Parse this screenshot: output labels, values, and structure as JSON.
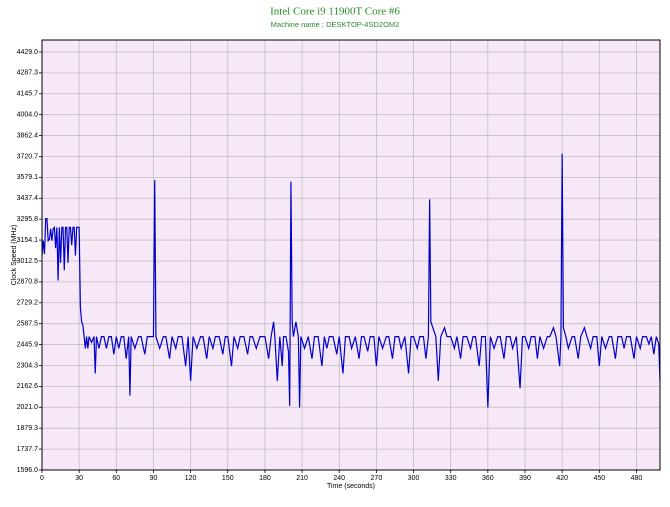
{
  "chart_data": {
    "type": "line",
    "title": "Intel Core i9 11900T Core #6",
    "subtitle": "Machine name : DESKTOP-4SD2OM2",
    "x_label": "Time (seconds)",
    "y_label": "Clock Speed (MHz)",
    "xlim": [
      0,
      499
    ],
    "ylim": [
      1596,
      4510
    ],
    "xticks": [
      0,
      30,
      60,
      90,
      120,
      150,
      180,
      210,
      240,
      270,
      300,
      330,
      360,
      390,
      420,
      450,
      480
    ],
    "yticks": [
      {
        "value": 1596,
        "label": "1596.0"
      },
      1737.7,
      1879.3,
      {
        "value": 2021,
        "label": "2021.0"
      },
      2162.6,
      2304.3,
      2445.9,
      2587.5,
      2729.2,
      2870.8,
      3012.5,
      3154.1,
      3295.8,
      3437.4,
      3579.1,
      3720.7,
      3862.4,
      {
        "value": 4004,
        "label": "4004.0"
      },
      4145.7,
      4287.3,
      {
        "value": 4429,
        "label": "4429.0"
      }
    ],
    "grid": true,
    "background": "#f7e8f7",
    "x": [
      0,
      1,
      2,
      3,
      4,
      5,
      6,
      7,
      8,
      9,
      10,
      11,
      12,
      13,
      14,
      15,
      16,
      17,
      18,
      19,
      20,
      21,
      22,
      23,
      24,
      25,
      26,
      27,
      28,
      29,
      30,
      31,
      32,
      33,
      34,
      35,
      36,
      37,
      38,
      40,
      42,
      43,
      44,
      46,
      48,
      50,
      52,
      54,
      56,
      58,
      60,
      62,
      64,
      66,
      68,
      70,
      71,
      72,
      75,
      78,
      80,
      83,
      85,
      88,
      90,
      91,
      92,
      95,
      98,
      100,
      103,
      105,
      108,
      110,
      113,
      116,
      118,
      120,
      122,
      125,
      128,
      130,
      133,
      135,
      138,
      140,
      143,
      146,
      148,
      150,
      153,
      155,
      158,
      160,
      163,
      166,
      168,
      170,
      173,
      176,
      180,
      183,
      185,
      187,
      188,
      190,
      192,
      194,
      195,
      197,
      199,
      200,
      201,
      202,
      203,
      205,
      207,
      208,
      209,
      212,
      215,
      218,
      220,
      223,
      226,
      228,
      230,
      232,
      235,
      238,
      240,
      243,
      245,
      248,
      250,
      253,
      256,
      258,
      260,
      263,
      265,
      268,
      270,
      272,
      275,
      278,
      280,
      283,
      285,
      288,
      290,
      293,
      296,
      298,
      300,
      303,
      305,
      308,
      310,
      312,
      313,
      314,
      316,
      318,
      320,
      322,
      325,
      327,
      330,
      333,
      335,
      338,
      340,
      343,
      346,
      348,
      350,
      353,
      355,
      358,
      360,
      362,
      365,
      368,
      370,
      373,
      375,
      378,
      380,
      383,
      386,
      388,
      390,
      393,
      395,
      398,
      400,
      402,
      405,
      408,
      410,
      413,
      415,
      418,
      419,
      420,
      421,
      423,
      425,
      428,
      430,
      433,
      435,
      438,
      440,
      443,
      445,
      448,
      450,
      452,
      455,
      458,
      460,
      463,
      465,
      468,
      470,
      472,
      475,
      478,
      480,
      483,
      485,
      488,
      490,
      492,
      494,
      496,
      498,
      499
    ],
    "series": [
      {
        "color": "#0000cc",
        "values": [
          3050,
          3150,
          3060,
          3300,
          3300,
          3150,
          3160,
          3230,
          3150,
          3230,
          3240,
          3100,
          3240,
          2880,
          3240,
          3000,
          3240,
          3240,
          2950,
          3240,
          3240,
          3000,
          3240,
          3240,
          3120,
          3240,
          3240,
          3050,
          3240,
          3240,
          3240,
          2700,
          2600,
          2580,
          2500,
          2420,
          2500,
          2420,
          2500,
          2460,
          2500,
          2250,
          2500,
          2420,
          2500,
          2500,
          2420,
          2500,
          2500,
          2380,
          2500,
          2420,
          2500,
          2500,
          2350,
          2500,
          2100,
          2500,
          2420,
          2500,
          2500,
          2380,
          2500,
          2500,
          2500,
          3560,
          2500,
          2420,
          2500,
          2500,
          2350,
          2500,
          2420,
          2500,
          2500,
          2300,
          2500,
          2200,
          2500,
          2420,
          2500,
          2500,
          2350,
          2500,
          2420,
          2500,
          2500,
          2380,
          2500,
          2500,
          2300,
          2500,
          2420,
          2500,
          2500,
          2380,
          2500,
          2500,
          2420,
          2500,
          2500,
          2350,
          2500,
          2600,
          2500,
          2200,
          2500,
          2300,
          2500,
          2500,
          2400,
          2030,
          3550,
          2600,
          2500,
          2600,
          2500,
          2020,
          2500,
          2420,
          2500,
          2350,
          2500,
          2500,
          2300,
          2500,
          2420,
          2500,
          2500,
          2380,
          2500,
          2250,
          2500,
          2500,
          2420,
          2500,
          2350,
          2500,
          2500,
          2400,
          2500,
          2500,
          2300,
          2500,
          2420,
          2500,
          2500,
          2350,
          2500,
          2500,
          2420,
          2500,
          2250,
          2500,
          2500,
          2420,
          2500,
          2500,
          2350,
          2500,
          3430,
          2600,
          2550,
          2500,
          2200,
          2500,
          2560,
          2500,
          2500,
          2420,
          2500,
          2350,
          2500,
          2500,
          2420,
          2500,
          2500,
          2300,
          2500,
          2500,
          2020,
          2500,
          2420,
          2500,
          2500,
          2350,
          2500,
          2500,
          2420,
          2500,
          2150,
          2500,
          2500,
          2420,
          2500,
          2500,
          2350,
          2500,
          2420,
          2500,
          2500,
          2560,
          2500,
          2300,
          2500,
          3740,
          2560,
          2500,
          2420,
          2500,
          2500,
          2350,
          2500,
          2560,
          2500,
          2420,
          2500,
          2500,
          2300,
          2500,
          2420,
          2500,
          2500,
          2350,
          2500,
          2500,
          2420,
          2500,
          2500,
          2350,
          2500,
          2420,
          2500,
          2500,
          2450,
          2500,
          2380,
          2500,
          2450,
          2200
        ]
      }
    ]
  }
}
